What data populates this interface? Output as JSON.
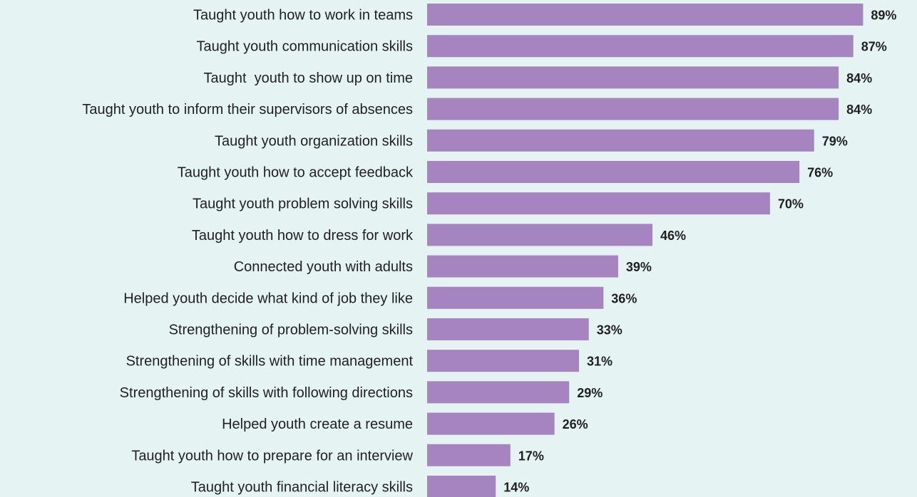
{
  "colors": {
    "background": "#e5f4f2",
    "bar": "#a584bf",
    "text": "#1f1f1f"
  },
  "chart_data": {
    "type": "bar",
    "orientation": "horizontal",
    "value_suffix": "%",
    "xlim": [
      0,
      100
    ],
    "grid": false,
    "legend": "none",
    "categories": [
      "Taught youth how to work in teams",
      "Taught youth communication skills",
      "Taught  youth to show up on time",
      "Taught youth to inform their supervisors of absences",
      "Taught youth organization skills",
      "Taught youth how to accept feedback",
      "Taught youth problem solving skills",
      "Taught youth how to dress for work",
      "Connected youth with adults",
      "Helped youth decide what kind of job they like",
      "Strengthening of problem-solving skills",
      "Strengthening of skills with time management",
      "Strengthening of skills with following directions",
      "Helped youth create a resume",
      "Taught youth how to prepare for an interview",
      "Taught youth financial literacy skills"
    ],
    "values": [
      89,
      87,
      84,
      84,
      79,
      76,
      70,
      46,
      39,
      36,
      33,
      31,
      29,
      26,
      17,
      14
    ],
    "value_labels": [
      "89%",
      "87%",
      "84%",
      "84%",
      "79%",
      "76%",
      "70%",
      "46%",
      "39%",
      "36%",
      "33%",
      "31%",
      "29%",
      "26%",
      "17%",
      "14%"
    ]
  }
}
